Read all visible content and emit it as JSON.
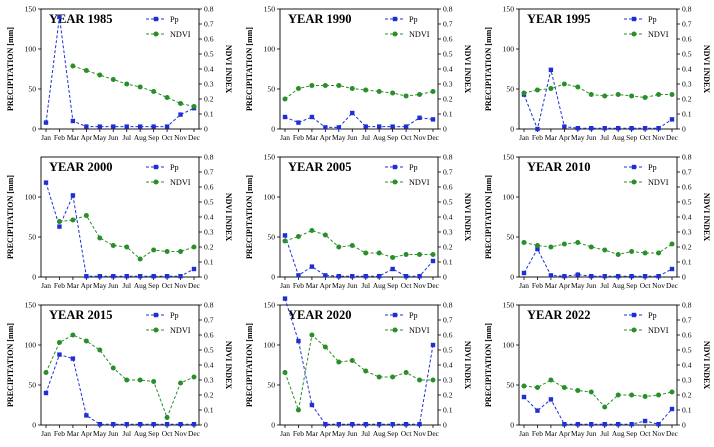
{
  "figure": {
    "months": [
      "Jan",
      "Feb",
      "Mar",
      "Apr",
      "May",
      "Jun",
      "Jul",
      "Aug",
      "Sep",
      "Oct",
      "Nov",
      "Dec"
    ],
    "left_axis_label": "PRECIPITATION [mm]",
    "right_axis_label": "NDVI INDEX",
    "legend_pp": "Pp",
    "legend_ndvi": "NDVI",
    "colors": {
      "pp": "#1f2fd6",
      "ndvi": "#2a8f2a",
      "axis": "#000000"
    }
  },
  "chart_data": [
    {
      "type": "line",
      "title": "YEAR 1985",
      "xlabel": "",
      "ylabel": "PRECIPITATION [mm]",
      "y2label": "NDVI INDEX",
      "categories": [
        "Jan",
        "Feb",
        "Mar",
        "Apr",
        "May",
        "Jun",
        "Jul",
        "Aug",
        "Sep",
        "Oct",
        "Nov",
        "Dec"
      ],
      "ylim": [
        0,
        150
      ],
      "yticks": [
        0,
        50,
        100,
        150
      ],
      "y2lim": [
        0,
        0.8
      ],
      "y2ticks": [
        0,
        0.1,
        0.2,
        0.3,
        0.4,
        0.5,
        0.6,
        0.7,
        0.8
      ],
      "series": [
        {
          "name": "Pp",
          "axis": "left",
          "values": [
            8,
            140,
            10,
            3,
            3,
            3,
            3,
            3,
            3,
            3,
            18,
            26
          ]
        },
        {
          "name": "NDVI",
          "axis": "right",
          "values": [
            null,
            null,
            0.42,
            0.39,
            0.36,
            0.33,
            0.3,
            0.28,
            0.25,
            0.21,
            0.17,
            0.15
          ]
        }
      ]
    },
    {
      "type": "line",
      "title": "YEAR 1990",
      "xlabel": "",
      "ylabel": "PRECIPITATION [mm]",
      "y2label": "NDVI INDEX",
      "categories": [
        "Jan",
        "Feb",
        "Mar",
        "Apr",
        "May",
        "Jun",
        "Jul",
        "Aug",
        "Sep",
        "Oct",
        "Nov",
        "Dec"
      ],
      "ylim": [
        0,
        150
      ],
      "yticks": [
        0,
        50,
        100,
        150
      ],
      "y2lim": [
        0,
        0.8
      ],
      "y2ticks": [
        0,
        0.1,
        0.2,
        0.3,
        0.4,
        0.5,
        0.6,
        0.7,
        0.8
      ],
      "series": [
        {
          "name": "Pp",
          "axis": "left",
          "values": [
            15,
            8,
            15,
            2,
            2,
            20,
            3,
            3,
            3,
            3,
            14,
            12
          ]
        },
        {
          "name": "NDVI",
          "axis": "right",
          "values": [
            0.2,
            0.27,
            0.29,
            0.29,
            0.29,
            0.27,
            0.26,
            0.25,
            0.24,
            0.22,
            0.23,
            0.25
          ]
        }
      ]
    },
    {
      "type": "line",
      "title": "YEAR 1995",
      "xlabel": "",
      "ylabel": "PRECIPITATION [mm]",
      "y2label": "NDVI INDEX",
      "categories": [
        "Jan",
        "Feb",
        "Mar",
        "Apr",
        "May",
        "Jun",
        "Jul",
        "Aug",
        "Sep",
        "Oct",
        "Nov",
        "Dec"
      ],
      "ylim": [
        0,
        150
      ],
      "yticks": [
        0,
        50,
        100,
        150
      ],
      "y2lim": [
        0,
        0.8
      ],
      "y2ticks": [
        0,
        0.1,
        0.2,
        0.3,
        0.4,
        0.5,
        0.6,
        0.7,
        0.8
      ],
      "series": [
        {
          "name": "Pp",
          "axis": "left",
          "values": [
            43,
            0,
            74,
            3,
            1,
            1,
            1,
            1,
            1,
            1,
            1,
            12
          ]
        },
        {
          "name": "NDVI",
          "axis": "right",
          "values": [
            0.24,
            0.26,
            0.27,
            0.3,
            0.28,
            0.23,
            0.22,
            0.23,
            0.22,
            0.21,
            0.23,
            0.23
          ]
        }
      ]
    },
    {
      "type": "line",
      "title": "YEAR 2000",
      "xlabel": "",
      "ylabel": "PRECIPITATION [mm]",
      "y2label": "NDVI INDEX",
      "categories": [
        "Jan",
        "Feb",
        "Mar",
        "Apr",
        "May",
        "Jun",
        "Jul",
        "Aug",
        "Sep",
        "Oct",
        "Nov",
        "Dec"
      ],
      "ylim": [
        0,
        150
      ],
      "yticks": [
        0,
        50,
        100
      ],
      "y2lim": [
        0,
        0.8
      ],
      "y2ticks": [
        0,
        0.1,
        0.2,
        0.3,
        0.4,
        0.5,
        0.6,
        0.7,
        0.8
      ],
      "series": [
        {
          "name": "Pp",
          "axis": "left",
          "values": [
            118,
            63,
            102,
            1,
            1,
            1,
            1,
            1,
            1,
            1,
            1,
            10
          ]
        },
        {
          "name": "NDVI",
          "axis": "right",
          "values": [
            null,
            0.37,
            0.38,
            0.41,
            0.26,
            0.21,
            0.2,
            0.12,
            0.18,
            0.17,
            0.17,
            0.2
          ]
        }
      ]
    },
    {
      "type": "line",
      "title": "YEAR 2005",
      "xlabel": "",
      "ylabel": "PRECIPITATION [mm]",
      "y2label": "NDVI INDEX",
      "categories": [
        "Jan",
        "Feb",
        "Mar",
        "Apr",
        "May",
        "Jun",
        "Jul",
        "Aug",
        "Sep",
        "Oct",
        "Nov",
        "Dec"
      ],
      "ylim": [
        0,
        150
      ],
      "yticks": [
        0,
        50,
        100,
        150
      ],
      "y2lim": [
        0,
        0.8
      ],
      "y2ticks": [
        0,
        0.1,
        0.2,
        0.3,
        0.4,
        0.5,
        0.6,
        0.7,
        0.8
      ],
      "series": [
        {
          "name": "Pp",
          "axis": "left",
          "values": [
            52,
            2,
            13,
            2,
            1,
            1,
            1,
            1,
            10,
            1,
            1,
            20
          ]
        },
        {
          "name": "NDVI",
          "axis": "right",
          "values": [
            0.24,
            0.27,
            0.31,
            0.28,
            0.2,
            0.21,
            0.16,
            0.16,
            0.13,
            0.15,
            0.15,
            0.15
          ]
        }
      ]
    },
    {
      "type": "line",
      "title": "YEAR 2010",
      "xlabel": "",
      "ylabel": "PRECIPITATION [mm]",
      "y2label": "NDVI INDEX",
      "categories": [
        "Jan",
        "Feb",
        "Mar",
        "Apr",
        "May",
        "Jun",
        "Jul",
        "Aug",
        "Sep",
        "Oct",
        "Nov",
        "Dec"
      ],
      "ylim": [
        0,
        150
      ],
      "yticks": [
        0,
        50,
        100,
        150
      ],
      "y2lim": [
        0,
        0.8
      ],
      "y2ticks": [
        0,
        0.1,
        0.2,
        0.3,
        0.4,
        0.5,
        0.6,
        0.7,
        0.8
      ],
      "series": [
        {
          "name": "Pp",
          "axis": "left",
          "values": [
            5,
            35,
            2,
            1,
            3,
            1,
            1,
            1,
            1,
            1,
            1,
            10
          ]
        },
        {
          "name": "NDVI",
          "axis": "right",
          "values": [
            0.23,
            0.21,
            0.2,
            0.22,
            0.23,
            0.2,
            0.18,
            0.15,
            0.17,
            0.16,
            0.16,
            0.22
          ]
        }
      ]
    },
    {
      "type": "line",
      "title": "YEAR 2015",
      "xlabel": "",
      "ylabel": "PRECIPITATION [mm]",
      "y2label": "NDVI INDEX",
      "categories": [
        "Jan",
        "Feb",
        "Mar",
        "Apr",
        "May",
        "Jun",
        "Jul",
        "Aug",
        "Sep",
        "Oct",
        "Nov",
        "Dec"
      ],
      "ylim": [
        0,
        150
      ],
      "yticks": [
        0,
        50,
        100,
        150
      ],
      "y2lim": [
        0,
        0.8
      ],
      "y2ticks": [
        0,
        0.1,
        0.2,
        0.3,
        0.4,
        0.5,
        0.6,
        0.7,
        0.8
      ],
      "series": [
        {
          "name": "Pp",
          "axis": "left",
          "values": [
            40,
            88,
            83,
            12,
            1,
            1,
            1,
            1,
            1,
            1,
            1,
            1
          ]
        },
        {
          "name": "NDVI",
          "axis": "right",
          "values": [
            0.35,
            0.55,
            0.6,
            0.56,
            0.5,
            0.38,
            0.3,
            0.3,
            0.29,
            0.05,
            0.28,
            0.32
          ]
        }
      ]
    },
    {
      "type": "line",
      "title": "YEAR 2020",
      "xlabel": "",
      "ylabel": "PRECIPITATION [mm]",
      "y2label": "NDVI INDEX",
      "categories": [
        "Jan",
        "Feb",
        "Mar",
        "Apr",
        "May",
        "Jun",
        "Jul",
        "Aug",
        "Sep",
        "Oct",
        "Nov",
        "Dec"
      ],
      "ylim": [
        0,
        150
      ],
      "yticks": [
        0,
        50,
        100,
        150
      ],
      "y2lim": [
        0,
        0.8
      ],
      "y2ticks": [
        0,
        0.1,
        0.2,
        0.3,
        0.4,
        0.5,
        0.6,
        0.7,
        0.8
      ],
      "series": [
        {
          "name": "Pp",
          "axis": "left",
          "values": [
            158,
            105,
            25,
            1,
            1,
            1,
            1,
            1,
            1,
            1,
            1,
            100
          ]
        },
        {
          "name": "NDVI",
          "axis": "right",
          "values": [
            0.35,
            0.1,
            0.6,
            0.52,
            0.42,
            0.43,
            0.36,
            0.32,
            0.32,
            0.35,
            0.3,
            0.3
          ]
        }
      ]
    },
    {
      "type": "line",
      "title": "YEAR 2022",
      "xlabel": "",
      "ylabel": "PRECIPITATION [mm]",
      "y2label": "NDVI INDEX",
      "categories": [
        "Jan",
        "Feb",
        "Mar",
        "Apr",
        "May",
        "Jun",
        "Jul",
        "Aug",
        "Sep",
        "Oct",
        "Nov",
        "Dec"
      ],
      "ylim": [
        0,
        150
      ],
      "yticks": [
        0,
        50,
        100,
        150
      ],
      "y2lim": [
        0,
        0.8
      ],
      "y2ticks": [
        0,
        0.1,
        0.2,
        0.3,
        0.4,
        0.5,
        0.6,
        0.7,
        0.8
      ],
      "series": [
        {
          "name": "Pp",
          "axis": "left",
          "values": [
            35,
            18,
            32,
            1,
            1,
            1,
            1,
            1,
            1,
            5,
            1,
            20
          ]
        },
        {
          "name": "NDVI",
          "axis": "right",
          "values": [
            0.26,
            0.25,
            0.3,
            0.25,
            0.23,
            0.22,
            0.12,
            0.2,
            0.2,
            0.19,
            0.2,
            0.22
          ]
        }
      ]
    }
  ]
}
